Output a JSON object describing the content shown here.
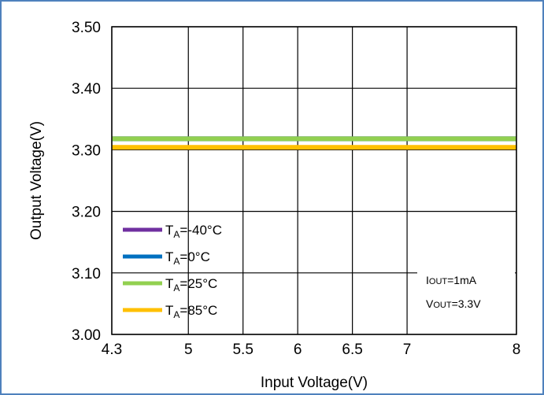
{
  "chart_data": {
    "type": "line",
    "title": "",
    "xlabel": "Input Voltage(V)",
    "ylabel": "Output Voltage(V)",
    "xlim": [
      4.3,
      8
    ],
    "ylim": [
      3.0,
      3.5
    ],
    "x_ticks": [
      4.3,
      5,
      5.5,
      6,
      6.5,
      7,
      8
    ],
    "x_tick_labels": [
      "4.3",
      "5",
      "5.5",
      "6",
      "6.5",
      "7",
      "8"
    ],
    "y_ticks": [
      3.0,
      3.1,
      3.2,
      3.3,
      3.4,
      3.5
    ],
    "y_tick_labels": [
      "3.00",
      "3.10",
      "3.20",
      "3.30",
      "3.40",
      "3.50"
    ],
    "grid": true,
    "legend_position": "bottom-left",
    "series": [
      {
        "name": "TA=-40°C",
        "label_main": "T",
        "label_sub": "A",
        "label_rest": "=-40°C",
        "color": "#7030a0",
        "x": [
          4.3,
          8
        ],
        "y": [
          3.318,
          3.318
        ]
      },
      {
        "name": "TA=0°C",
        "label_main": "T",
        "label_sub": "A",
        "label_rest": "=0°C",
        "color": "#0070c0",
        "x": [
          4.3,
          8
        ],
        "y": [
          3.318,
          3.318
        ]
      },
      {
        "name": "TA=25°C",
        "label_main": "T",
        "label_sub": "A",
        "label_rest": "=25°C",
        "color": "#92d050",
        "x": [
          4.3,
          8
        ],
        "y": [
          3.318,
          3.318
        ]
      },
      {
        "name": "TA=85°C",
        "label_main": "T",
        "label_sub": "A",
        "label_rest": "=85°C",
        "color": "#ffc000",
        "x": [
          4.3,
          8
        ],
        "y": [
          3.304,
          3.304
        ]
      }
    ],
    "annotations": [
      {
        "main": "I",
        "small": "OUT",
        "rest": "=1mA"
      },
      {
        "main": "V",
        "small": "OUT",
        "rest": "=3.3V"
      }
    ]
  }
}
